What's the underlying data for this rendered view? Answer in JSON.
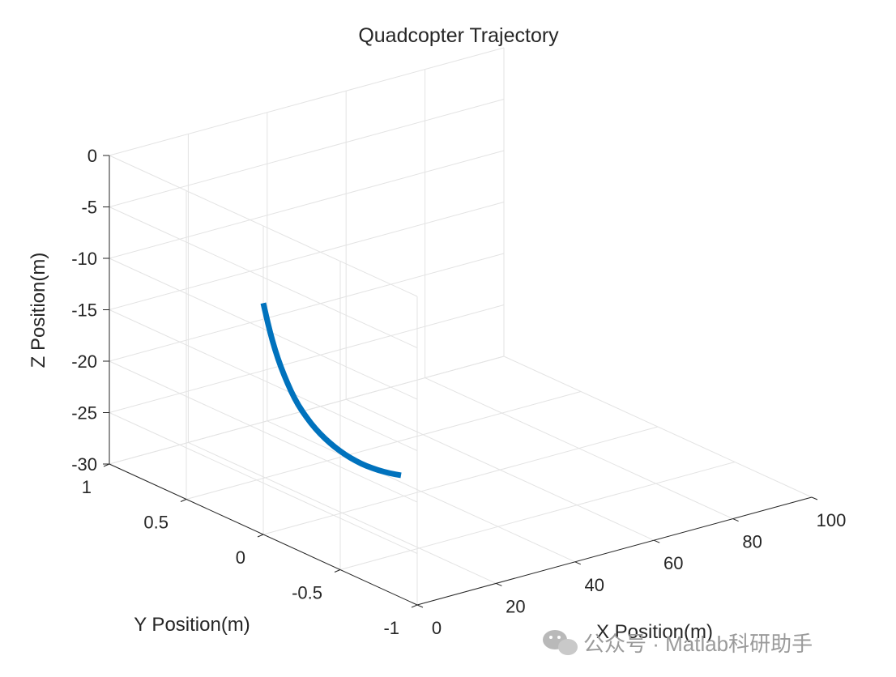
{
  "chart_data": {
    "type": "line",
    "title": "Quadcopter Trajectory",
    "xlabel": "X Position(m)",
    "ylabel": "Y Position(m)",
    "zlabel": "Z Position(m)",
    "xlim": [
      0,
      100
    ],
    "ylim": [
      -1,
      1
    ],
    "zlim": [
      -30,
      0
    ],
    "x_ticks": [
      "0",
      "20",
      "40",
      "60",
      "80",
      "100"
    ],
    "y_ticks": [
      "-1",
      "-0.5",
      "0",
      "0.5",
      "1"
    ],
    "z_ticks": [
      "-30",
      "-25",
      "-20",
      "-15",
      "-10",
      "-5",
      "0"
    ],
    "grid": true,
    "series": [
      {
        "color": "#0072BD",
        "x": [
          0,
          1.1,
          2.3,
          3.7,
          5.3,
          7.0,
          8.9,
          11.0,
          13.2,
          15.6,
          18.1,
          20.7,
          23.4,
          26.2,
          29.1,
          32.0,
          34.9
        ],
        "y": [
          0,
          0,
          0,
          0,
          0,
          0,
          0,
          0,
          0,
          0,
          0,
          0,
          0,
          0,
          0,
          0,
          0
        ],
        "z": [
          -7.5,
          -9.5,
          -11.4,
          -13.3,
          -15.1,
          -16.8,
          -18.4,
          -19.8,
          -21.1,
          -22.3,
          -23.4,
          -24.4,
          -25.3,
          -26.1,
          -26.8,
          -27.4,
          -27.9
        ]
      }
    ]
  },
  "watermark": {
    "icon": "wechat-icon",
    "text": "公众号 · Matlab科研助手"
  }
}
